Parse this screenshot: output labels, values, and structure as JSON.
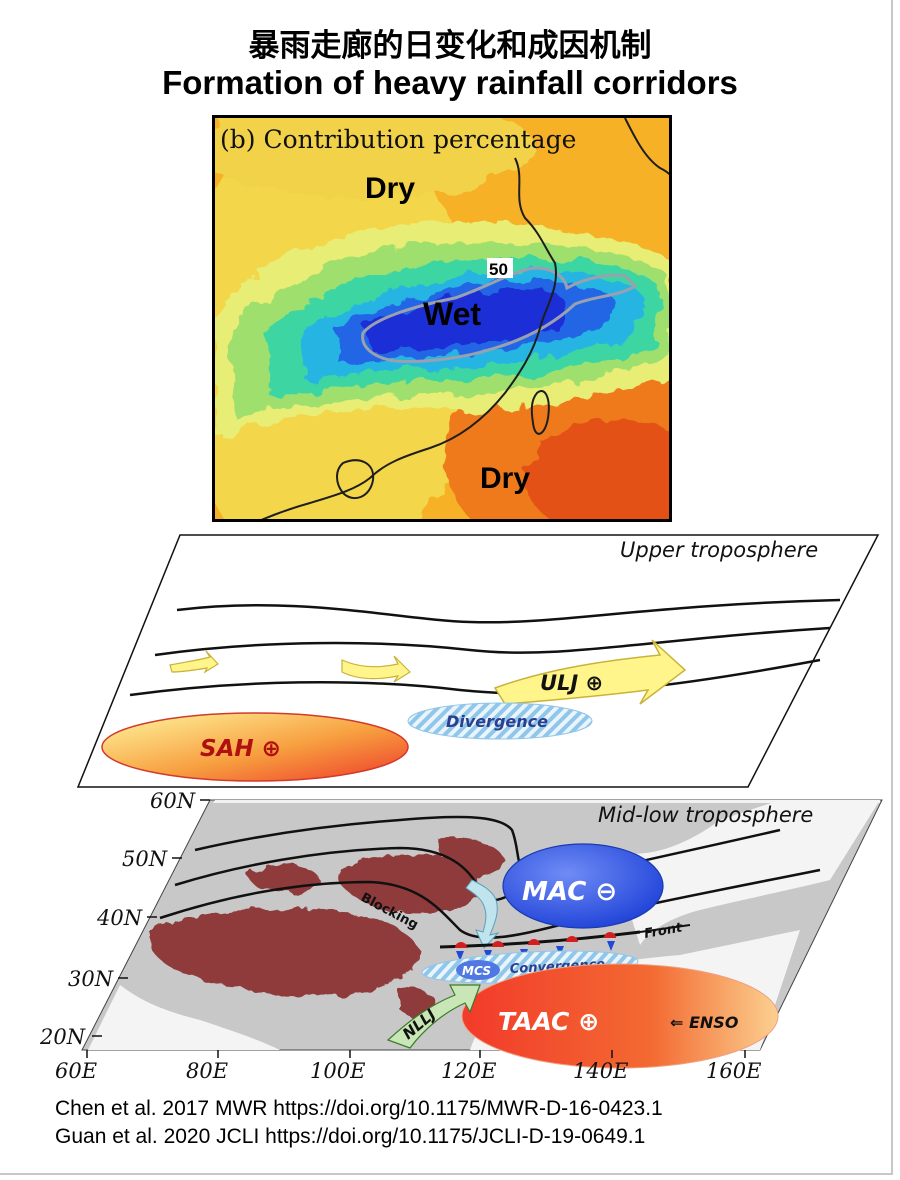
{
  "title_zh": "暴雨走廊的日变化和成因机制",
  "title_en": "Formation of heavy rainfall corridors",
  "panel_b": {
    "label": "(b) Contribution percentage",
    "dry_top": "Dry",
    "wet": "Wet",
    "dry_bottom": "Dry",
    "contour_value": "50"
  },
  "upper": {
    "title": "Upper troposphere",
    "ulj": "ULJ ⊕",
    "divergence": "Divergence",
    "sah": "SAH ⊕"
  },
  "lower": {
    "title": "Mid-low troposphere",
    "lat_labels": [
      "60N",
      "50N",
      "40N",
      "30N",
      "20N"
    ],
    "lon_labels": [
      "60E",
      "80E",
      "100E",
      "120E",
      "140E",
      "160E"
    ],
    "blocking": "Blocking",
    "mac": "MAC ⊖",
    "front": "Front",
    "mcs": "MCS",
    "convergence": "Convergence",
    "nllj": "NLLJ",
    "taac": "TAAC ⊕",
    "enso": "⇐ ENSO"
  },
  "references": [
    "Chen et al. 2017 MWR https://doi.org/10.1175/MWR-D-16-0423.1",
    "Guan et al. 2020 JCLI https://doi.org/10.1175/JCLI-D-19-0649.1"
  ],
  "colors": {
    "wet_core": "#1b2fd6",
    "dry": "#f58a1f",
    "sah_fill": "#f05a3c",
    "jet_fill": "#fff58a",
    "mac_fill": "#3a5fe0",
    "taac_fill": "#f04a2a",
    "terrain": "#8f3a3a"
  }
}
